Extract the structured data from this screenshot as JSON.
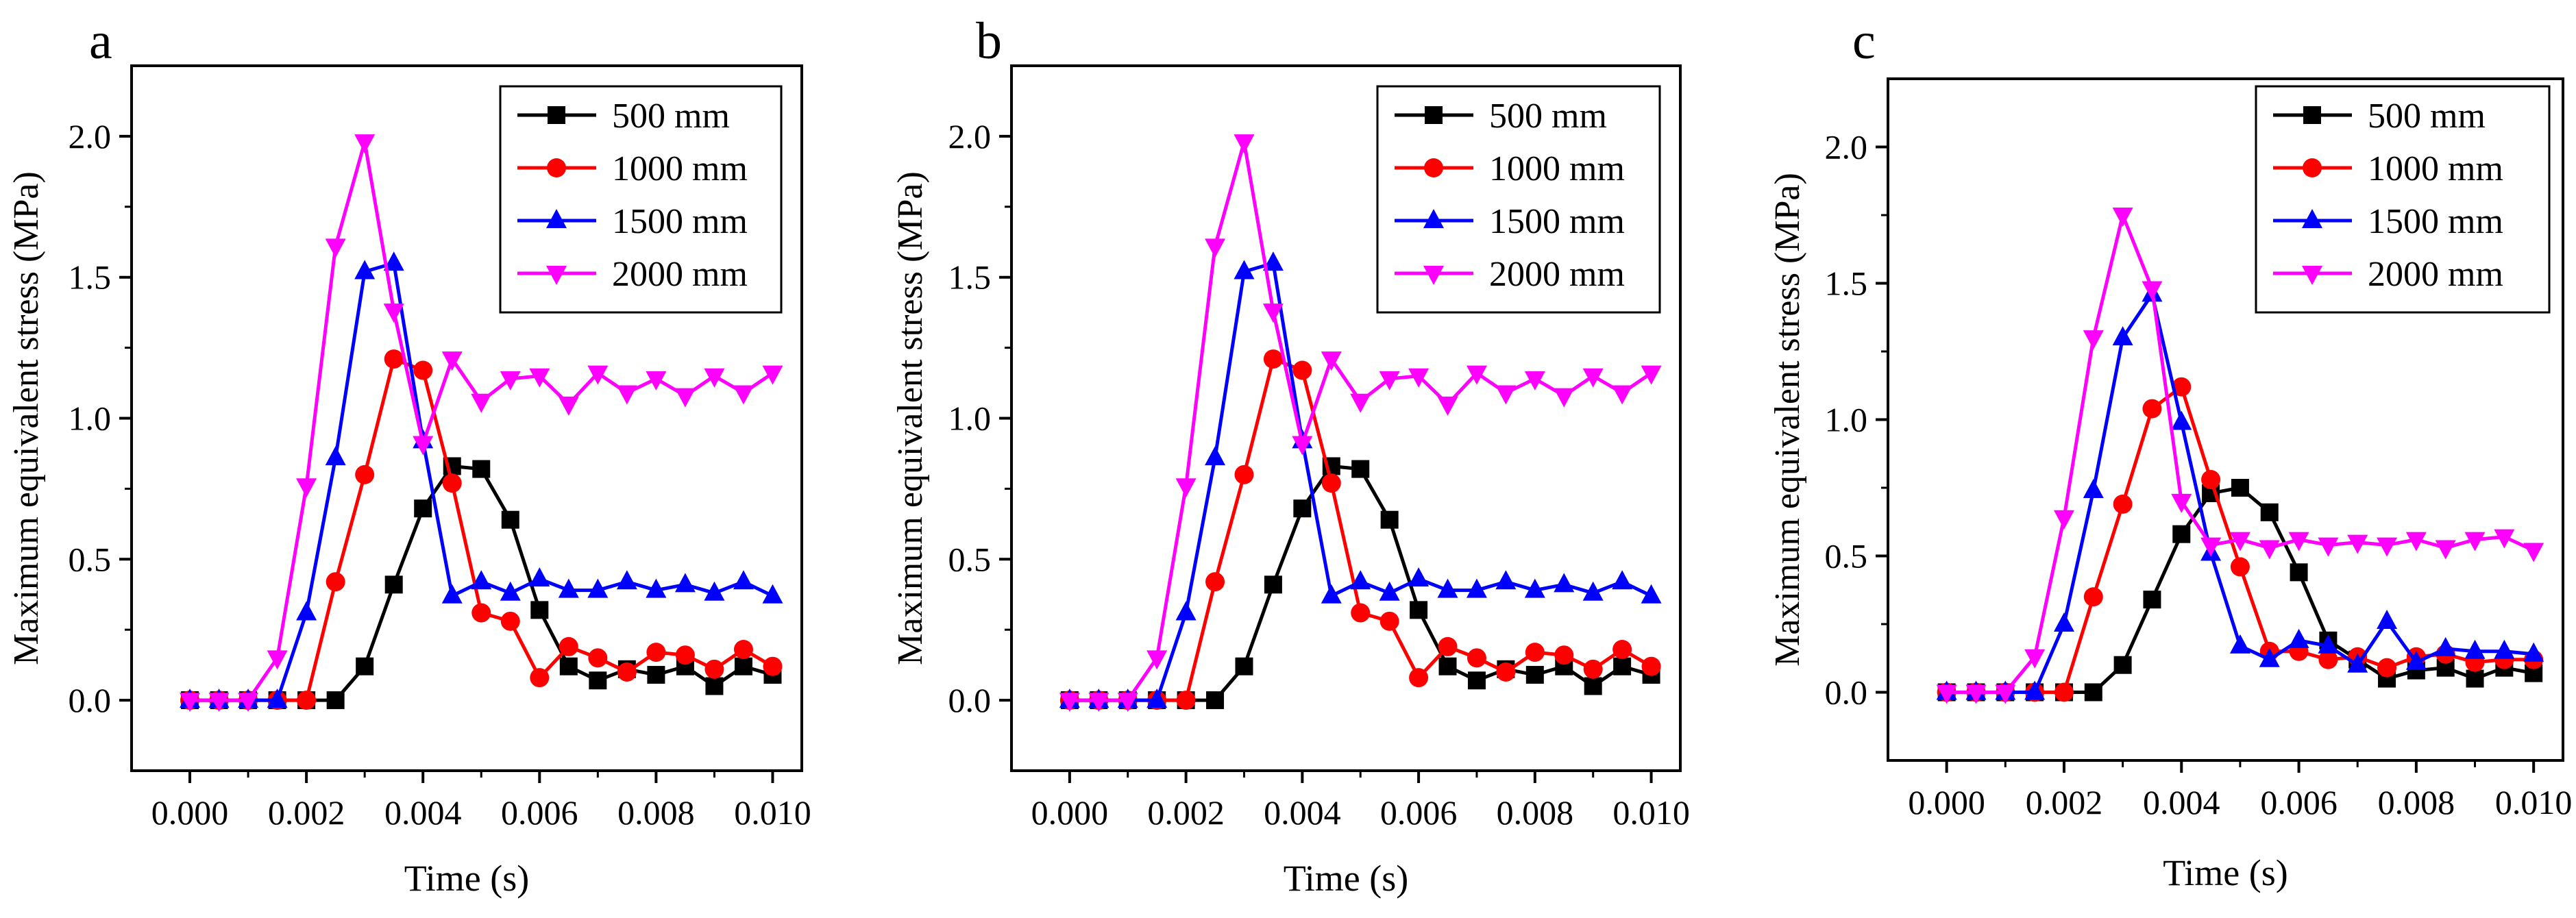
{
  "chart_data": [
    {
      "type": "line",
      "panel_label": "a",
      "xlabel": "Time (s)",
      "ylabel": "Maximum equivalent stress (MPa)",
      "xlim": [
        -0.001,
        0.0105
      ],
      "ylim": [
        -0.25,
        2.25
      ],
      "xticks": [
        0.0,
        0.002,
        0.004,
        0.006,
        0.008,
        0.01
      ],
      "xtick_labels": [
        "0.000",
        "0.002",
        "0.004",
        "0.006",
        "0.008",
        "0.010"
      ],
      "yticks": [
        0.0,
        0.5,
        1.0,
        1.5,
        2.0
      ],
      "ytick_labels": [
        "0.0",
        "0.5",
        "1.0",
        "1.5",
        "2.0"
      ],
      "legend_position": "top-right",
      "x": [
        0,
        0.0005,
        0.001,
        0.0015,
        0.002,
        0.0025,
        0.003,
        0.0035,
        0.004,
        0.0045,
        0.005,
        0.0055,
        0.006,
        0.0065,
        0.007,
        0.0075,
        0.008,
        0.0085,
        0.009,
        0.0095,
        0.01
      ],
      "series": [
        {
          "name": "500  mm",
          "color": "#000000",
          "marker": "square",
          "values": [
            0,
            0,
            0,
            0,
            0,
            0,
            0.12,
            0.41,
            0.68,
            0.83,
            0.82,
            0.64,
            0.32,
            0.12,
            0.07,
            0.11,
            0.09,
            0.12,
            0.05,
            0.12,
            0.09
          ]
        },
        {
          "name": "1000 mm",
          "color": "#ff0000",
          "marker": "circle",
          "values": [
            0,
            0,
            0,
            0,
            0,
            0.42,
            0.8,
            1.21,
            1.17,
            0.77,
            0.31,
            0.28,
            0.08,
            0.19,
            0.15,
            0.1,
            0.17,
            0.16,
            0.11,
            0.18,
            0.12
          ]
        },
        {
          "name": "1500 mm",
          "color": "#0000ff",
          "marker": "triangle-up",
          "values": [
            0,
            0,
            0,
            0,
            0.31,
            0.86,
            1.52,
            1.55,
            0.92,
            0.37,
            0.42,
            0.38,
            0.43,
            0.39,
            0.39,
            0.42,
            0.39,
            0.41,
            0.38,
            0.42,
            0.37
          ]
        },
        {
          "name": "2000 mm",
          "color": "#ff00ff",
          "marker": "triangle-down",
          "values": [
            0,
            0,
            0,
            0.15,
            0.76,
            1.61,
            1.98,
            1.38,
            0.91,
            1.21,
            1.06,
            1.14,
            1.15,
            1.05,
            1.16,
            1.09,
            1.14,
            1.08,
            1.15,
            1.09,
            1.16
          ]
        }
      ]
    },
    {
      "type": "line",
      "panel_label": "b",
      "xlabel": "Time (s)",
      "ylabel": "Maximum equivalent stress (MPa)",
      "xlim": [
        -0.001,
        0.0105
      ],
      "ylim": [
        -0.25,
        2.25
      ],
      "xticks": [
        0.0,
        0.002,
        0.004,
        0.006,
        0.008,
        0.01
      ],
      "xtick_labels": [
        "0.000",
        "0.002",
        "0.004",
        "0.006",
        "0.008",
        "0.010"
      ],
      "yticks": [
        0.0,
        0.5,
        1.0,
        1.5,
        2.0
      ],
      "ytick_labels": [
        "0.0",
        "0.5",
        "1.0",
        "1.5",
        "2.0"
      ],
      "legend_position": "top-right",
      "x": [
        0,
        0.0005,
        0.001,
        0.0015,
        0.002,
        0.0025,
        0.003,
        0.0035,
        0.004,
        0.0045,
        0.005,
        0.0055,
        0.006,
        0.0065,
        0.007,
        0.0075,
        0.008,
        0.0085,
        0.009,
        0.0095,
        0.01
      ],
      "series": [
        {
          "name": "500  mm",
          "color": "#000000",
          "marker": "square",
          "values": [
            0,
            0,
            0,
            0,
            0,
            0,
            0.12,
            0.41,
            0.68,
            0.83,
            0.82,
            0.64,
            0.32,
            0.12,
            0.07,
            0.11,
            0.09,
            0.12,
            0.05,
            0.12,
            0.09
          ]
        },
        {
          "name": "1000 mm",
          "color": "#ff0000",
          "marker": "circle",
          "values": [
            0,
            0,
            0,
            0,
            0,
            0.42,
            0.8,
            1.21,
            1.17,
            0.77,
            0.31,
            0.28,
            0.08,
            0.19,
            0.15,
            0.1,
            0.17,
            0.16,
            0.11,
            0.18,
            0.12
          ]
        },
        {
          "name": "1500 mm",
          "color": "#0000ff",
          "marker": "triangle-up",
          "values": [
            0,
            0,
            0,
            0,
            0.31,
            0.86,
            1.52,
            1.55,
            0.92,
            0.37,
            0.42,
            0.38,
            0.43,
            0.39,
            0.39,
            0.42,
            0.39,
            0.41,
            0.38,
            0.42,
            0.37
          ]
        },
        {
          "name": "2000 mm",
          "color": "#ff00ff",
          "marker": "triangle-down",
          "values": [
            0,
            0,
            0,
            0.15,
            0.76,
            1.61,
            1.98,
            1.38,
            0.91,
            1.21,
            1.06,
            1.14,
            1.15,
            1.05,
            1.16,
            1.09,
            1.14,
            1.08,
            1.15,
            1.09,
            1.16
          ]
        }
      ]
    },
    {
      "type": "line",
      "panel_label": "c",
      "xlabel": "Time (s)",
      "ylabel": "Maximum equivalent stress (MPa)",
      "xlim": [
        -0.001,
        0.0105
      ],
      "ylim": [
        -0.25,
        2.25
      ],
      "xticks": [
        0.0,
        0.002,
        0.004,
        0.006,
        0.008,
        0.01
      ],
      "xtick_labels": [
        "0.000",
        "0.002",
        "0.004",
        "0.006",
        "0.008",
        "0.010"
      ],
      "yticks": [
        0.0,
        0.5,
        1.0,
        1.5,
        2.0
      ],
      "ytick_labels": [
        "0.0",
        "0.5",
        "1.0",
        "1.5",
        "2.0"
      ],
      "legend_position": "top-right",
      "x": [
        0,
        0.0005,
        0.001,
        0.0015,
        0.002,
        0.0025,
        0.003,
        0.0035,
        0.004,
        0.0045,
        0.005,
        0.0055,
        0.006,
        0.0065,
        0.007,
        0.0075,
        0.008,
        0.0085,
        0.009,
        0.0095,
        0.01
      ],
      "series": [
        {
          "name": "500  mm",
          "color": "#000000",
          "marker": "square",
          "values": [
            0,
            0,
            0,
            0,
            0,
            0,
            0.1,
            0.34,
            0.58,
            0.73,
            0.75,
            0.66,
            0.44,
            0.19,
            0.12,
            0.05,
            0.08,
            0.09,
            0.05,
            0.09,
            0.07
          ]
        },
        {
          "name": "1000 mm",
          "color": "#ff0000",
          "marker": "circle",
          "values": [
            0,
            0,
            0,
            0,
            0,
            0.35,
            0.69,
            1.04,
            1.12,
            0.78,
            0.46,
            0.15,
            0.15,
            0.12,
            0.13,
            0.09,
            0.13,
            0.14,
            0.11,
            0.12,
            0.12
          ]
        },
        {
          "name": "1500 mm",
          "color": "#0000ff",
          "marker": "triangle-up",
          "values": [
            0,
            0,
            0,
            0,
            0.25,
            0.74,
            1.3,
            1.46,
            0.99,
            0.51,
            0.17,
            0.12,
            0.19,
            0.17,
            0.1,
            0.26,
            0.11,
            0.16,
            0.15,
            0.15,
            0.14
          ]
        },
        {
          "name": "2000 mm",
          "color": "#ff00ff",
          "marker": "triangle-down",
          "values": [
            0,
            0,
            0,
            0.13,
            0.64,
            1.3,
            1.75,
            1.48,
            0.7,
            0.54,
            0.56,
            0.53,
            0.56,
            0.54,
            0.55,
            0.54,
            0.56,
            0.53,
            0.56,
            0.57,
            0.52
          ]
        }
      ]
    }
  ]
}
